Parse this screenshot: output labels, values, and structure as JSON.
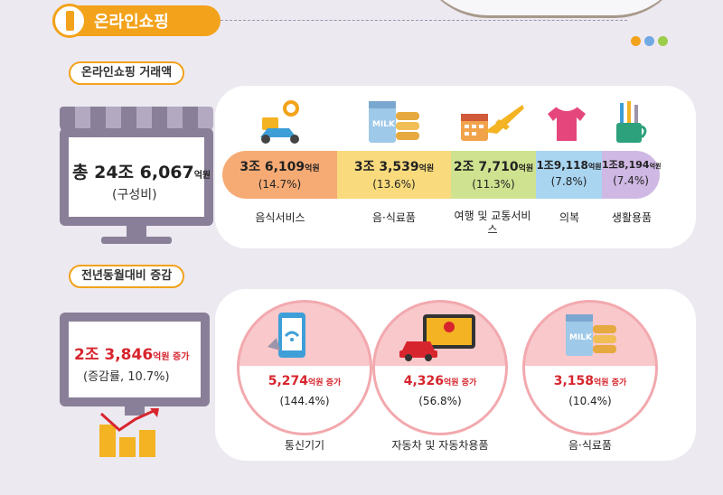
{
  "header": {
    "title": "온라인쇼핑"
  },
  "colors": {
    "accent": "#f3a21b",
    "dots": [
      "#f3a21b",
      "#71a9e3",
      "#9ccd4a"
    ]
  },
  "section1": {
    "label": "온라인쇼핑 거래액",
    "total": {
      "amount": "총 24조 6,067",
      "unit": "억원",
      "sub": "(구성비)"
    },
    "categories": [
      {
        "amount": "3조 6,109",
        "unit": "억원",
        "pct": "(14.7%)",
        "label": "음식서비스",
        "icon": "scooter-icon",
        "color": "#f7ab74"
      },
      {
        "amount": "3조 3,539",
        "unit": "억원",
        "pct": "(13.6%)",
        "label": "음·식료품",
        "icon": "milk-icon",
        "color": "#f9db7d"
      },
      {
        "amount": "2조 7,710",
        "unit": "억원",
        "pct": "(11.3%)",
        "label": "여행 및 교통서비스",
        "icon": "airplane-icon",
        "color": "#cfe28f"
      },
      {
        "amount": "1조9,118",
        "unit": "억원",
        "pct": "(7.8%)",
        "label": "의복",
        "icon": "shirt-icon",
        "color": "#a9d5f1"
      },
      {
        "amount": "1조8,194",
        "unit": "억원",
        "pct": "(7.4%)",
        "label": "생활용품",
        "icon": "toothbrush-icon",
        "color": "#cfb8e3"
      }
    ]
  },
  "section2": {
    "label": "전년동월대비 증감",
    "total": {
      "amount": "2조 3,846",
      "unit": "억원 증가",
      "sub": "(증감률, 10.7%)"
    },
    "items": [
      {
        "amount": "5,274",
        "unit": "억원 증가",
        "pct": "(144.4%)",
        "label": "통신기기",
        "icon": "smartphone-icon"
      },
      {
        "amount": "4,326",
        "unit": "억원 증가",
        "pct": "(56.8%)",
        "label": "자동차 및 자동차용품",
        "icon": "car-icon"
      },
      {
        "amount": "3,158",
        "unit": "억원 증가",
        "pct": "(10.4%)",
        "label": "음·식료품",
        "icon": "milk-icon"
      }
    ]
  }
}
